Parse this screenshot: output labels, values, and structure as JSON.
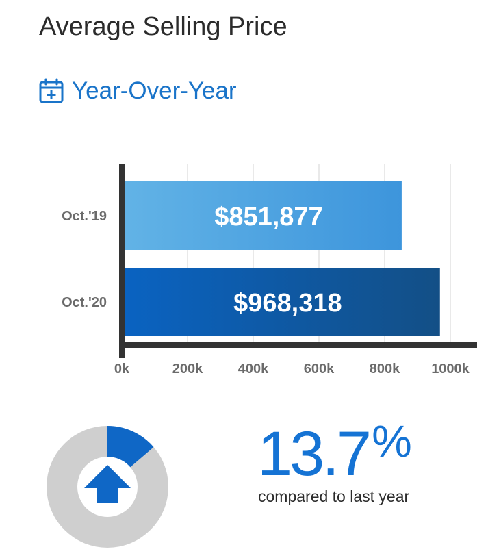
{
  "header": {
    "title": "Average Selling Price",
    "subtitle": "Year-Over-Year",
    "subtitle_icon": "calendar-plus-icon"
  },
  "colors": {
    "accent": "#1a74c9",
    "bar1_start": "#62b3e6",
    "bar1_end": "#3d95dc",
    "bar2_start": "#0a63c2",
    "bar2_end": "#134f86",
    "axis": "#333333",
    "grid": "#e2e2e2",
    "donut_track": "#cfcfcf",
    "donut_fill": "#0f67c6"
  },
  "chart_data": {
    "type": "bar",
    "orientation": "horizontal",
    "categories": [
      "Oct.'19",
      "Oct.'20"
    ],
    "values": [
      851877,
      968318
    ],
    "data_labels": [
      "$851,877",
      "$968,318"
    ],
    "xlim": [
      0,
      1000000
    ],
    "x_ticks": [
      "0k",
      "200k",
      "400k",
      "600k",
      "800k",
      "1000k"
    ],
    "grid": true
  },
  "change": {
    "value": "13.7",
    "unit": "%",
    "caption": "compared to last year",
    "direction_icon": "arrow-up-icon",
    "ring_fraction": 0.137
  }
}
